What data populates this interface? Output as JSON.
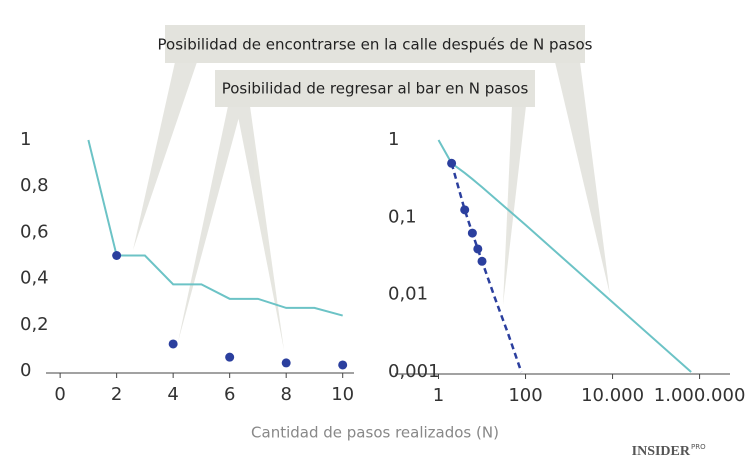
{
  "annotations": [
    "Posibilidad de encontrarse en la calle después de N pasos",
    "Posibilidad de regresar al bar en N pasos"
  ],
  "xlabel": "Cantidad de pasos realizados (N)",
  "logo": {
    "name": "INSIDER",
    "tag": "PRO"
  },
  "chart_data": [
    {
      "type": "line",
      "xlim": [
        -0.5,
        10.4
      ],
      "ylim": [
        0,
        1
      ],
      "xticks": [
        0,
        2,
        4,
        6,
        8,
        10
      ],
      "yticks": [
        0,
        {
          "value": 0.2,
          "label": "0,2"
        },
        {
          "value": 0.4,
          "label": "0,4"
        },
        {
          "value": 0.6,
          "label": "0,6"
        },
        {
          "value": 0.8,
          "label": "0,8"
        },
        1
      ],
      "series": [
        {
          "kind": "line",
          "color": "#6cc3c6",
          "x": [
            1,
            2,
            3,
            4,
            5,
            6,
            7,
            8,
            9,
            10
          ],
          "values": [
            1,
            0.5,
            0.5,
            0.375,
            0.375,
            0.3125,
            0.3125,
            0.273,
            0.273,
            0.24
          ]
        },
        {
          "kind": "scatter",
          "color": "#2b3f9e",
          "x": [
            2,
            4,
            6,
            8,
            10
          ],
          "values": [
            0.5,
            0.117,
            0.06,
            0.035,
            0.026
          ]
        }
      ]
    },
    {
      "type": "line",
      "xscale": "log",
      "yscale": "log",
      "xlim": [
        0.1,
        5000000
      ],
      "ylim": [
        0.001,
        1
      ],
      "xticks": [
        1,
        100,
        {
          "value": 10000,
          "label": "10.000"
        },
        {
          "value": 1000000,
          "label": "1.000.000"
        }
      ],
      "yticks": [
        {
          "value": 0.001,
          "label": "0,001"
        },
        {
          "value": 0.01,
          "label": "0,01"
        },
        {
          "value": 0.1,
          "label": "0,1"
        },
        1
      ],
      "series": [
        {
          "kind": "line",
          "color": "#6cc3c6",
          "x": [
            1,
            2,
            4,
            6,
            8,
            10,
            100,
            10000,
            640000
          ],
          "values": [
            1,
            0.5,
            0.375,
            0.3125,
            0.273,
            0.246,
            0.0798,
            0.00798,
            0.001
          ]
        },
        {
          "kind": "dashed",
          "color": "#2b3f9e",
          "x": [
            2,
            4,
            6,
            8,
            10,
            20,
            40,
            80
          ],
          "values": [
            0.5,
            0.125,
            0.0625,
            0.039,
            0.027,
            0.0089,
            0.0031,
            0.001
          ]
        },
        {
          "kind": "scatter",
          "color": "#2b3f9e",
          "x": [
            2,
            4,
            6,
            8,
            10
          ],
          "values": [
            0.5,
            0.125,
            0.0625,
            0.039,
            0.027
          ]
        }
      ]
    }
  ]
}
